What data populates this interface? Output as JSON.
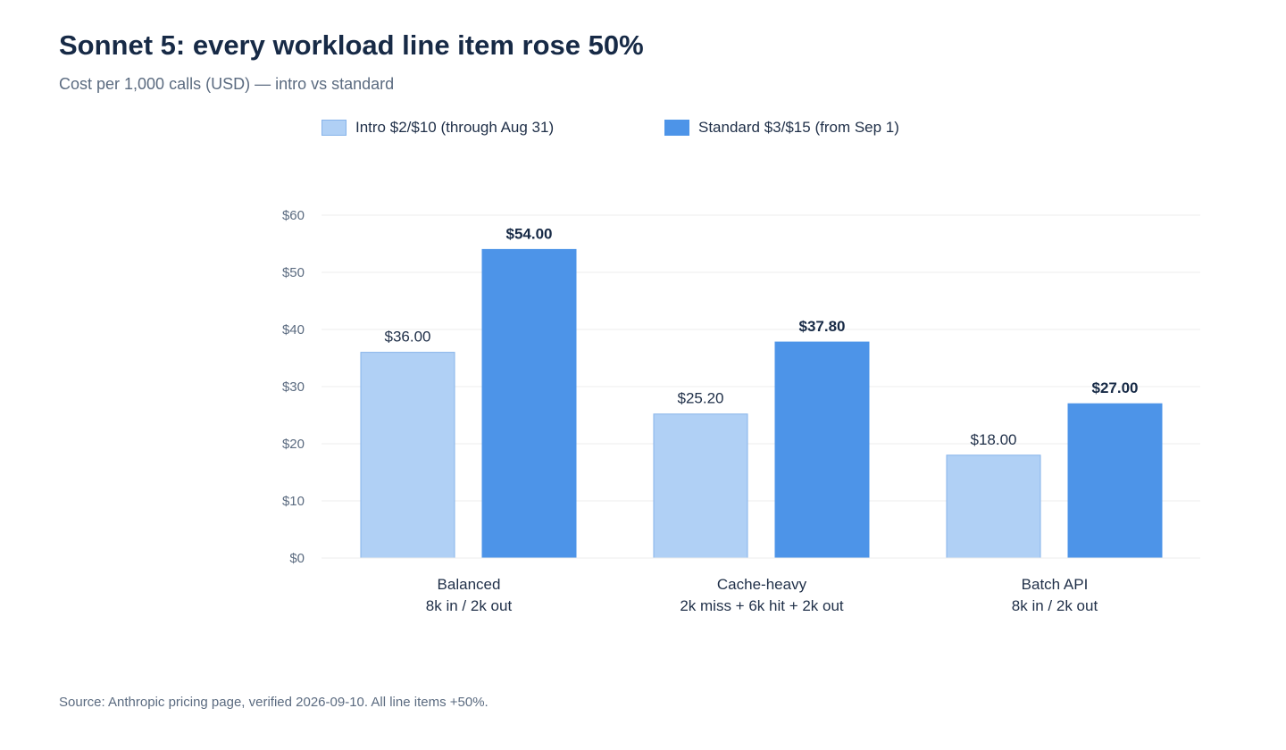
{
  "title": "Sonnet 5: every workload line item rose 50%",
  "subtitle": "Cost per 1,000 calls (USD) — intro vs standard",
  "footer": "Source: Anthropic pricing page, verified 2026-09-10. All line items +50%.",
  "colors": {
    "intro_fill": "#b0d0f5",
    "intro_stroke": "#86b3ea",
    "standard_fill": "#4d94e8",
    "grid": "#ececec",
    "tick_text": "#5b6b80",
    "label_text": "#1f2f48"
  },
  "chart_data": {
    "type": "bar",
    "categories": [
      {
        "name": "Balanced",
        "detail": "8k in / 2k out"
      },
      {
        "name": "Cache-heavy",
        "detail": "2k miss + 6k hit + 2k out"
      },
      {
        "name": "Batch API",
        "detail": "8k in / 2k out"
      }
    ],
    "series": [
      {
        "name": "Intro $2/$10 (through Aug 31)",
        "values": [
          36.0,
          25.2,
          18.0
        ],
        "labels": [
          "$36.00",
          "$25.20",
          "$18.00"
        ]
      },
      {
        "name": "Standard $3/$15 (from Sep 1)",
        "values": [
          54.0,
          37.8,
          27.0
        ],
        "labels": [
          "$54.00",
          "$37.80",
          "$27.00"
        ]
      }
    ],
    "ylim": [
      0,
      60
    ],
    "yticks": [
      0,
      10,
      20,
      30,
      40,
      50,
      60
    ],
    "ytick_labels": [
      "$0",
      "$10",
      "$20",
      "$30",
      "$40",
      "$50",
      "$60"
    ],
    "grid": true,
    "legend_position": "top"
  }
}
